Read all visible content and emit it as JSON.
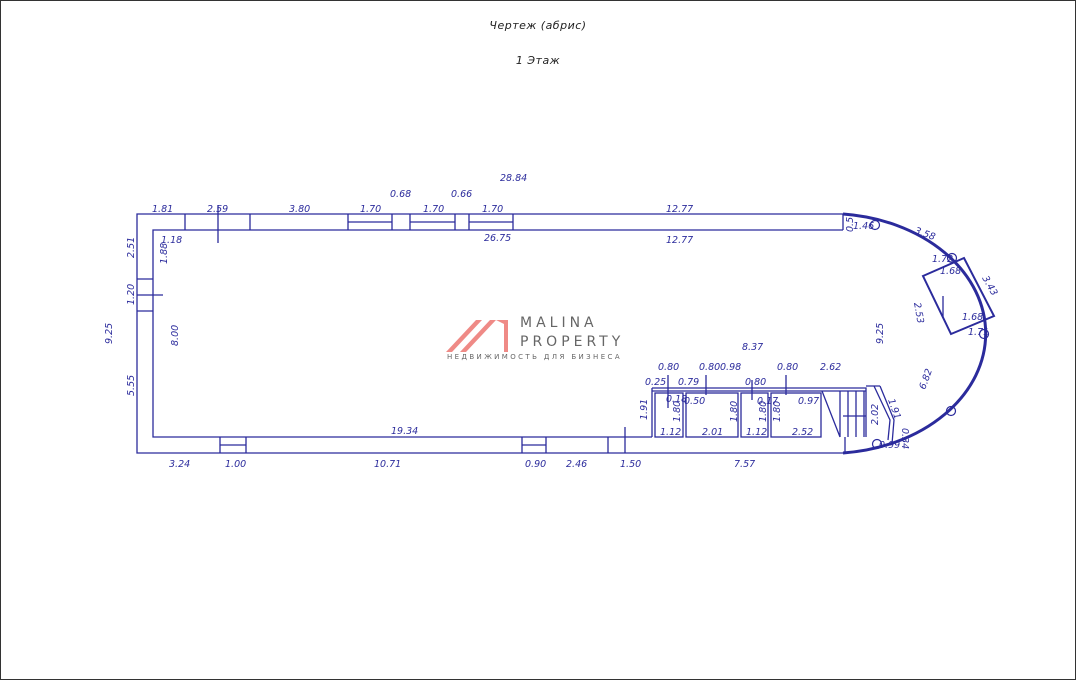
{
  "header": {
    "title": "Чертеж (абрис)",
    "floor": "1 Этаж"
  },
  "logo": {
    "line1": "MALINA",
    "line2": "PROPERTY",
    "tagline": "НЕДВИЖИМОСТЬ ДЛЯ БИЗНЕСА",
    "color": "#ef8a86"
  },
  "colors": {
    "lines": "#2b2b9c"
  },
  "dimensions": [
    "28.84",
    "1.81",
    "2.59",
    "3.80",
    "1.70",
    "0.68",
    "1.70",
    "0.66",
    "1.70",
    "12.77",
    "26.75",
    "12.77",
    "2.51",
    "1.18",
    "1.88",
    "1.20",
    "9.25",
    "8.00",
    "5.55",
    "19.34",
    "3.24",
    "1.00",
    "10.71",
    "0.90",
    "2.46",
    "1.50",
    "7.57",
    "0.5",
    "1.46",
    "3.58",
    "1.72",
    "1.68",
    "2.53",
    "1.68",
    "1.71",
    "9.25",
    "8.37",
    "0.80",
    "0.80",
    "0.98",
    "0.80",
    "2.62",
    "0.25",
    "0.79",
    "0.80",
    "0.18",
    "0.50",
    "0.17",
    "0.97",
    "1.91",
    "1.80",
    "1.80",
    "1.80",
    "1.80",
    "1.12",
    "2.01",
    "1.12",
    "2.52",
    "2.02",
    "1.91",
    "6.82",
    "0.99",
    "0.34",
    "3.43"
  ]
}
